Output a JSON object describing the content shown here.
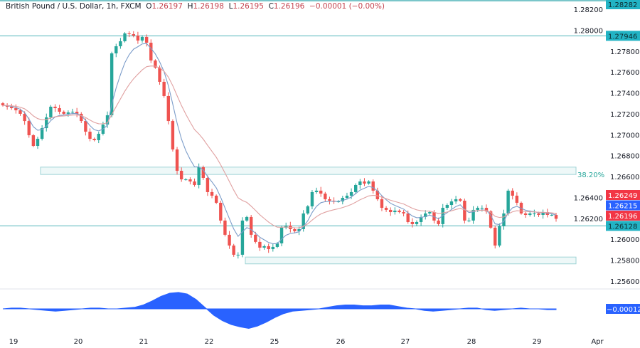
{
  "header": {
    "symbol": "British Pound / U.S. Dollar, 1h, FXCM",
    "open_label": "O",
    "open": "1.26197",
    "high_label": "H",
    "high": "1.26198",
    "low_label": "L",
    "low": "1.26195",
    "close_label": "C",
    "close": "1.26196",
    "change": "−0.00001 (−0.00%)"
  },
  "chart_data": {
    "type": "candlestick",
    "ylim": [
      1.2552,
      1.2831
    ],
    "y_ticks": [
      "1.28200",
      "1.28000",
      "1.27800",
      "1.27600",
      "1.27400",
      "1.27200",
      "1.27000",
      "1.26800",
      "1.26600",
      "1.26400",
      "1.26200",
      "1.26000",
      "1.25800",
      "1.25600"
    ],
    "x_ticks": [
      "19",
      "20",
      "21",
      "22",
      "25",
      "26",
      "27",
      "28",
      "29",
      "Apr"
    ],
    "closes": [
      1.27281,
      1.27268,
      1.27254,
      1.27234,
      1.272,
      1.27131,
      1.26995,
      1.26893,
      1.26961,
      1.27063,
      1.27166,
      1.27268,
      1.27254,
      1.2722,
      1.272,
      1.27213,
      1.2722,
      1.272,
      1.27131,
      1.27029,
      1.26961,
      1.26948,
      1.27009,
      1.27097,
      1.27186,
      1.27778,
      1.27846,
      1.27894,
      1.27969,
      1.27962,
      1.27948,
      1.27901,
      1.27935,
      1.2788,
      1.2771,
      1.27642,
      1.27506,
      1.2737,
      1.27131,
      1.26859,
      1.26655,
      1.26573,
      1.26573,
      1.26553,
      1.26519,
      1.26689,
      1.26587,
      1.26451,
      1.26417,
      1.26349,
      1.26179,
      1.26043,
      1.2594,
      1.25852,
      1.25852,
      1.26179,
      1.26213,
      1.26043,
      1.25975,
      1.2592,
      1.25934,
      1.25906,
      1.25927,
      1.25961,
      1.26111,
      1.26131,
      1.26097,
      1.26077,
      1.26097,
      1.26247,
      1.26315,
      1.26451,
      1.26465,
      1.26437,
      1.26383,
      1.26369,
      1.26362,
      1.26362,
      1.26396,
      1.26417,
      1.26451,
      1.26519,
      1.26553,
      1.26533,
      1.26553,
      1.26465,
      1.26383,
      1.26301,
      1.26281,
      1.2626,
      1.26274,
      1.2626,
      1.26247,
      1.26165,
      1.26145,
      1.26165,
      1.26213,
      1.26247,
      1.2626,
      1.26179,
      1.26145,
      1.26301,
      1.26328,
      1.26362,
      1.26383,
      1.26369,
      1.26179,
      1.26179,
      1.26281,
      1.26301,
      1.26301,
      1.26267,
      1.26111,
      1.2594,
      1.26124,
      1.26247,
      1.26465,
      1.26417,
      1.26349,
      1.26247,
      1.26233,
      1.26247,
      1.26247,
      1.26233,
      1.2626,
      1.26233,
      1.26233,
      1.26196
    ],
    "horizontal_lines": [
      {
        "price": 1.28282,
        "label": "1.28282"
      },
      {
        "price": 1.27946,
        "label": "1.27946"
      },
      {
        "price": 1.26128,
        "label": "1.26128"
      }
    ],
    "zones": [
      {
        "top": 1.2669,
        "bottom": 1.2662,
        "label": "38.20%"
      },
      {
        "top": 1.2583,
        "bottom": 1.25765,
        "label": ""
      }
    ],
    "price_labels": [
      {
        "label": "1.26249",
        "price": 1.26249,
        "color": "#f23645"
      },
      {
        "label": "1.26215",
        "price": 1.26215,
        "color": "#2962ff"
      },
      {
        "label": "1.26196",
        "price": 1.26196,
        "color": "#f23645"
      }
    ],
    "oscillator": {
      "label": "−0.00012",
      "values": [
        0,
        0.0001,
        0.0001,
        0,
        -0.0001,
        -0.0002,
        -0.0003,
        -0.0002,
        -0.0001,
        0,
        0.0001,
        0.0001,
        0,
        0,
        0.0001,
        0.0002,
        0.0005,
        0.001,
        0.0016,
        0.002,
        0.0021,
        0.0019,
        0.0012,
        0.0002,
        -0.0008,
        -0.0015,
        -0.002,
        -0.0023,
        -0.0025,
        -0.0022,
        -0.0017,
        -0.0011,
        -0.0006,
        -0.0003,
        -0.0002,
        -0.0001,
        0,
        0.0002,
        0.0004,
        0.0005,
        0.0005,
        0.0004,
        0.0004,
        0.0005,
        0.0005,
        0.0003,
        0.0001,
        0,
        -0.0002,
        -0.0003,
        -0.0002,
        -0.0001,
        0,
        0.0001,
        0.0001,
        -0.0001,
        -0.0002,
        -0.0001,
        0,
        0.0001,
        0,
        0,
        -0.0001,
        -0.0001
      ]
    },
    "colors": {
      "up": "#26a69a",
      "down": "#ef5350",
      "fast_ma": "#7b9cc9",
      "slow_ma": "#e0a0a0",
      "line": "#4fb3b8",
      "oscillator": "#2962ff"
    }
  }
}
